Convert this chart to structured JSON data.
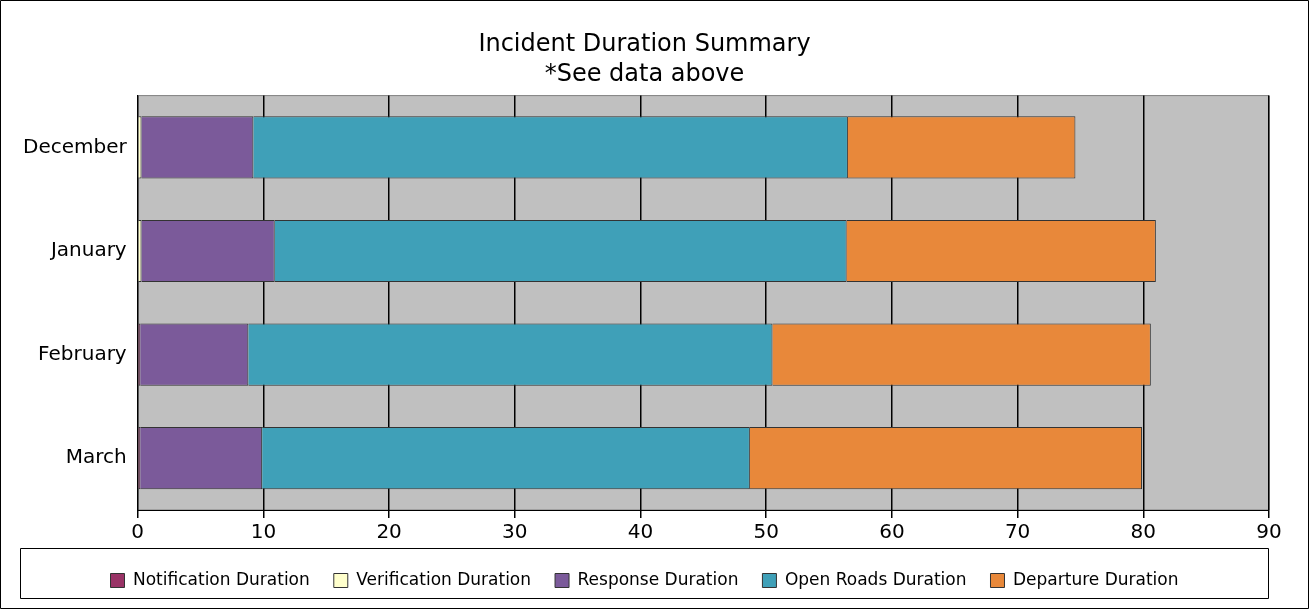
{
  "chart_data": {
    "type": "bar",
    "orientation": "horizontal",
    "stacked": true,
    "title": "Incident Duration Summary",
    "subtitle": "*See data above",
    "categories": [
      "December",
      "January",
      "February",
      "March"
    ],
    "series": [
      {
        "name": "Notification Duration",
        "color": "#993366",
        "values": [
          null,
          null,
          0.2,
          0.2
        ]
      },
      {
        "name": "Verification Duration",
        "color": "#ffffcc",
        "values": [
          0.3,
          0.3,
          0,
          0
        ]
      },
      {
        "name": "Response Duration",
        "color": "#7b5a9a",
        "values": [
          8.9,
          10.6,
          8.6,
          9.7
        ]
      },
      {
        "name": "Open Roads Duration",
        "color": "#3fa0b8",
        "values": [
          47.3,
          45.5,
          41.7,
          38.8
        ]
      },
      {
        "name": "Departure Duration",
        "color": "#e8883a",
        "values": [
          18.1,
          24.6,
          30.1,
          31.2
        ]
      }
    ],
    "xlim": [
      0,
      90
    ],
    "xticks": [
      0,
      10,
      20,
      30,
      40,
      50,
      60,
      70,
      80,
      90
    ],
    "grid": "x",
    "legend": "bottom"
  }
}
